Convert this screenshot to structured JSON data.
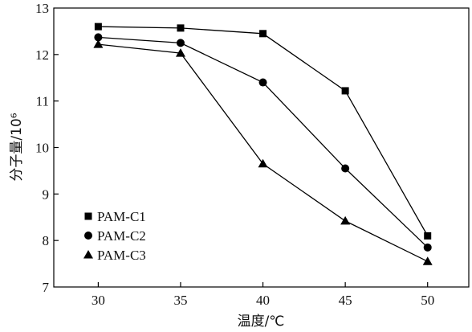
{
  "chart_data": {
    "type": "line",
    "title": "",
    "xlabel": "温度/℃",
    "ylabel": "分子量/10⁶",
    "x": [
      30,
      35,
      40,
      45,
      50
    ],
    "xticks": [
      "30",
      "35",
      "40",
      "45",
      "50"
    ],
    "yticks": [
      "7",
      "8",
      "9",
      "10",
      "11",
      "12",
      "13"
    ],
    "xlim": [
      27.3,
      52.5
    ],
    "ylim": [
      7,
      13
    ],
    "grid": false,
    "legend_position": "left",
    "series": [
      {
        "name": "PAM-C1",
        "marker": "square",
        "values": [
          12.6,
          12.57,
          12.45,
          11.22,
          8.1
        ]
      },
      {
        "name": "PAM-C2",
        "marker": "circle",
        "values": [
          12.37,
          12.25,
          11.4,
          9.55,
          7.85
        ]
      },
      {
        "name": "PAM-C3",
        "marker": "triangle",
        "values": [
          12.22,
          12.03,
          9.65,
          8.42,
          7.55
        ]
      }
    ],
    "colors": {
      "line": "#000000",
      "axis": "#000000"
    }
  }
}
